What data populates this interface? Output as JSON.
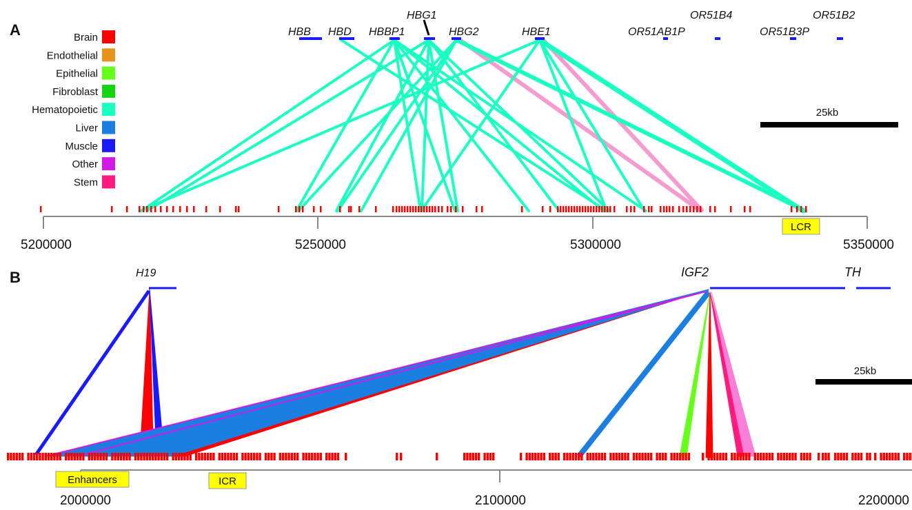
{
  "legend": [
    {
      "label": "Brain",
      "color": "#ff0000"
    },
    {
      "label": "Endothelial",
      "color": "#e8921a"
    },
    {
      "label": "Epithelial",
      "color": "#66ff1a"
    },
    {
      "label": "Fibroblast",
      "color": "#14d414"
    },
    {
      "label": "Hematopoietic",
      "color": "#1affc2"
    },
    {
      "label": "Liver",
      "color": "#1a7fe0"
    },
    {
      "label": "Muscle",
      "color": "#1a1aff"
    },
    {
      "label": "Other",
      "color": "#d21ae8"
    },
    {
      "label": "Stem",
      "color": "#ff1a80"
    }
  ],
  "panels": [
    {
      "label": "A",
      "axis_ticks": [
        "5200000",
        "5250000",
        "5300000",
        "5350000"
      ],
      "scale_bar": "25kb",
      "boxes": [
        "LCR"
      ],
      "genes": [
        "HBB",
        "HBD",
        "HBBP1",
        "HBG1",
        "HBG2",
        "HBE1",
        "OR51AB1P",
        "OR51B4",
        "OR51B3P",
        "OR51B2"
      ]
    },
    {
      "label": "B",
      "axis_ticks": [
        "2000000",
        "2100000",
        "2200000"
      ],
      "scale_bar": "25kb",
      "boxes": [
        "Enhancers",
        "ICR"
      ],
      "genes": [
        "H19",
        "IGF2",
        "TH"
      ]
    }
  ]
}
